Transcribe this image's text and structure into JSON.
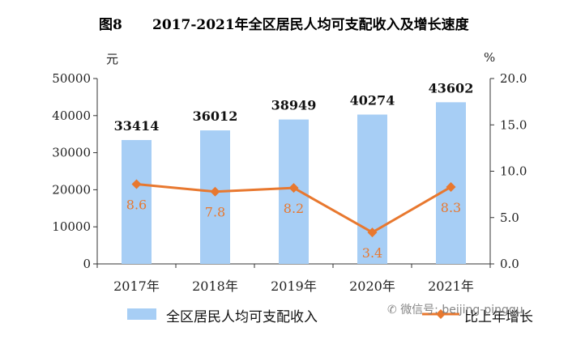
{
  "header": {
    "figure_no": "图8",
    "title": "2017-2021年全区居民人均可支配收入及增长速度"
  },
  "chart_data": {
    "type": "bar+line",
    "categories": [
      "2017年",
      "2018年",
      "2019年",
      "2020年",
      "2021年"
    ],
    "series": [
      {
        "name": "全区居民人均可支配收入",
        "type": "bar",
        "axis": "left",
        "values": [
          33414,
          36012,
          38949,
          40274,
          43602
        ],
        "color": "#a7cef5"
      },
      {
        "name": "比上年增长",
        "type": "line",
        "axis": "right",
        "values": [
          8.6,
          7.8,
          8.2,
          3.4,
          8.3
        ],
        "color": "#e8782f"
      }
    ],
    "left_axis": {
      "unit": "元",
      "min": 0,
      "max": 50000,
      "ticks": [
        "0",
        "10000",
        "20000",
        "30000",
        "40000",
        "50000"
      ]
    },
    "right_axis": {
      "unit": "%",
      "min": 0,
      "max": 20,
      "ticks": [
        "0.0",
        "5.0",
        "10.0",
        "15.0",
        "20.0"
      ]
    },
    "grid": false,
    "legend_placement": "bottom"
  },
  "watermark": {
    "text": "微信号: beijing-pinggu"
  }
}
